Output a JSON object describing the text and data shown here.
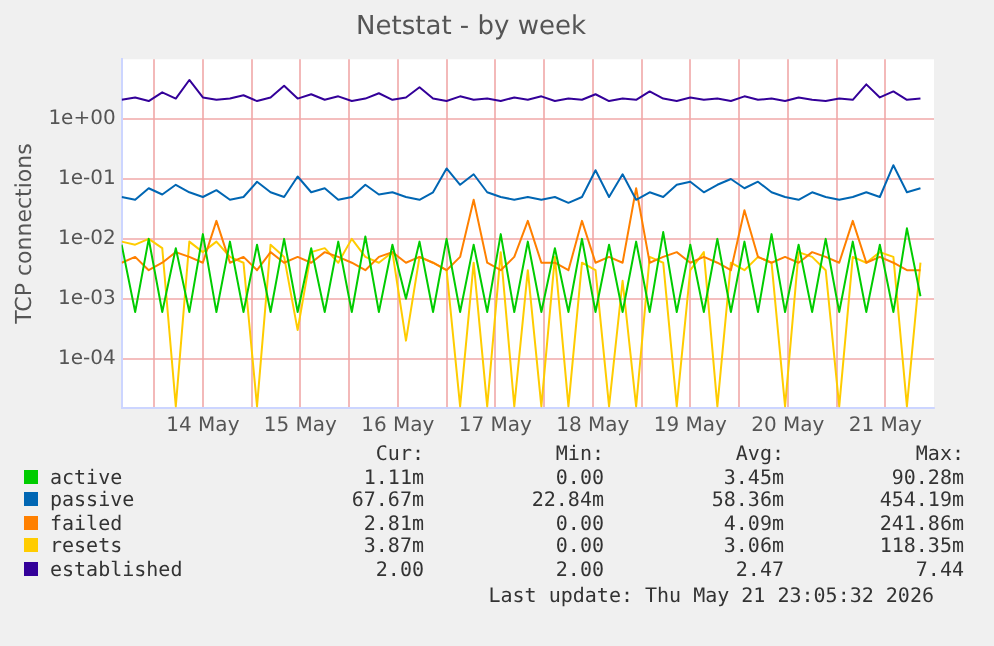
{
  "chart_data": {
    "type": "line",
    "title": "Netstat - by week",
    "ylabel": "TCP connections",
    "log": "y",
    "grid": true,
    "marker": "none",
    "line_style": "solid",
    "legend": "bottom",
    "ylim": [
      1.5e-05,
      10
    ],
    "yticks": [
      {
        "value": 0.0001,
        "label": "1e-04"
      },
      {
        "value": 0.001,
        "label": "1e-03"
      },
      {
        "value": 0.01,
        "label": "1e-02"
      },
      {
        "value": 0.1,
        "label": "1e-01"
      },
      {
        "value": 1,
        "label": "1e+00"
      }
    ],
    "xlim": [
      "2026-05-13T16:00",
      "2026-05-22T00:00"
    ],
    "xticks": [
      {
        "value": "2026-05-14T00:00",
        "label": null
      },
      {
        "value": "2026-05-14T12:00",
        "label": "14 May"
      },
      {
        "value": "2026-05-15T00:00",
        "label": null
      },
      {
        "value": "2026-05-15T12:00",
        "label": "15 May"
      },
      {
        "value": "2026-05-16T00:00",
        "label": null
      },
      {
        "value": "2026-05-16T12:00",
        "label": "16 May"
      },
      {
        "value": "2026-05-17T00:00",
        "label": null
      },
      {
        "value": "2026-05-17T12:00",
        "label": "17 May"
      },
      {
        "value": "2026-05-18T00:00",
        "label": null
      },
      {
        "value": "2026-05-18T12:00",
        "label": "18 May"
      },
      {
        "value": "2026-05-19T00:00",
        "label": null
      },
      {
        "value": "2026-05-19T12:00",
        "label": "19 May"
      },
      {
        "value": "2026-05-20T00:00",
        "label": null
      },
      {
        "value": "2026-05-20T12:00",
        "label": "20 May"
      },
      {
        "value": "2026-05-21T00:00",
        "label": null
      },
      {
        "value": "2026-05-21T12:00",
        "label": "21 May"
      }
    ],
    "x": [
      "2026-05-13T16:00",
      "2026-05-13T19:20",
      "2026-05-13T22:40",
      "2026-05-14T02:00",
      "2026-05-14T05:20",
      "2026-05-14T08:40",
      "2026-05-14T12:00",
      "2026-05-14T15:20",
      "2026-05-14T18:40",
      "2026-05-14T22:00",
      "2026-05-15T01:20",
      "2026-05-15T04:40",
      "2026-05-15T08:00",
      "2026-05-15T11:20",
      "2026-05-15T14:40",
      "2026-05-15T18:00",
      "2026-05-15T21:20",
      "2026-05-16T00:40",
      "2026-05-16T04:00",
      "2026-05-16T07:20",
      "2026-05-16T10:40",
      "2026-05-16T14:00",
      "2026-05-16T17:20",
      "2026-05-16T20:40",
      "2026-05-17T00:00",
      "2026-05-17T03:20",
      "2026-05-17T06:40",
      "2026-05-17T10:00",
      "2026-05-17T13:20",
      "2026-05-17T16:40",
      "2026-05-17T20:00",
      "2026-05-17T23:20",
      "2026-05-18T02:40",
      "2026-05-18T06:00",
      "2026-05-18T09:20",
      "2026-05-18T12:40",
      "2026-05-18T16:00",
      "2026-05-18T19:20",
      "2026-05-18T22:40",
      "2026-05-19T02:00",
      "2026-05-19T05:20",
      "2026-05-19T08:40",
      "2026-05-19T12:00",
      "2026-05-19T15:20",
      "2026-05-19T18:40",
      "2026-05-19T22:00",
      "2026-05-20T01:20",
      "2026-05-20T04:40",
      "2026-05-20T08:00",
      "2026-05-20T11:20",
      "2026-05-20T14:40",
      "2026-05-20T18:00",
      "2026-05-20T21:20",
      "2026-05-21T00:40",
      "2026-05-21T04:00",
      "2026-05-21T07:20",
      "2026-05-21T10:40",
      "2026-05-21T14:00",
      "2026-05-21T17:20",
      "2026-05-21T20:40"
    ],
    "series": [
      {
        "name": "active",
        "color": "#00cc00",
        "values": [
          0.008,
          0.0006,
          0.01,
          0.0006,
          0.007,
          0.0006,
          0.012,
          0.0006,
          0.009,
          0.0006,
          0.008,
          0.0006,
          0.01,
          0.0006,
          0.007,
          0.0006,
          0.009,
          0.0006,
          0.011,
          0.0006,
          0.008,
          0.001,
          0.009,
          0.0006,
          0.01,
          0.0006,
          0.008,
          0.0006,
          0.012,
          0.0006,
          0.009,
          0.0006,
          0.007,
          0.0006,
          0.01,
          0.0006,
          0.008,
          0.0006,
          0.009,
          0.0006,
          0.013,
          0.0006,
          0.008,
          0.0006,
          0.01,
          0.0006,
          0.009,
          0.0006,
          0.012,
          0.0006,
          0.008,
          0.0006,
          0.01,
          0.0006,
          0.009,
          0.0006,
          0.008,
          0.0006,
          0.015,
          0.0011
        ]
      },
      {
        "name": "passive",
        "color": "#0066b3",
        "values": [
          0.05,
          0.045,
          0.07,
          0.055,
          0.08,
          0.06,
          0.05,
          0.065,
          0.045,
          0.05,
          0.09,
          0.06,
          0.05,
          0.11,
          0.06,
          0.07,
          0.045,
          0.05,
          0.08,
          0.055,
          0.06,
          0.05,
          0.045,
          0.06,
          0.15,
          0.08,
          0.12,
          0.06,
          0.05,
          0.045,
          0.05,
          0.045,
          0.05,
          0.04,
          0.05,
          0.14,
          0.05,
          0.12,
          0.045,
          0.06,
          0.05,
          0.08,
          0.09,
          0.06,
          0.08,
          0.1,
          0.07,
          0.09,
          0.06,
          0.05,
          0.045,
          0.06,
          0.05,
          0.045,
          0.05,
          0.06,
          0.05,
          0.17,
          0.06,
          0.07
        ]
      },
      {
        "name": "failed",
        "color": "#ff8000",
        "values": [
          0.004,
          0.005,
          0.003,
          0.004,
          0.006,
          0.005,
          0.004,
          0.02,
          0.004,
          0.005,
          0.003,
          0.006,
          0.004,
          0.005,
          0.004,
          0.006,
          0.005,
          0.004,
          0.003,
          0.005,
          0.006,
          0.004,
          0.005,
          0.004,
          0.003,
          0.005,
          0.045,
          0.004,
          0.003,
          0.005,
          0.02,
          0.004,
          0.004,
          0.003,
          0.02,
          0.004,
          0.005,
          0.004,
          0.07,
          0.004,
          0.005,
          0.006,
          0.004,
          0.005,
          0.004,
          0.003,
          0.03,
          0.005,
          0.004,
          0.005,
          0.004,
          0.006,
          0.005,
          0.004,
          0.02,
          0.004,
          0.005,
          0.004,
          0.003,
          0.003
        ]
      },
      {
        "name": "resets",
        "color": "#ffcc00",
        "values": [
          0.009,
          0.008,
          0.01,
          0.007,
          1.6e-05,
          0.009,
          0.006,
          0.009,
          0.005,
          0.004,
          1.6e-05,
          0.008,
          0.005,
          0.0003,
          0.006,
          0.007,
          0.004,
          0.01,
          0.005,
          0.004,
          0.006,
          0.0002,
          0.005,
          0.004,
          0.003,
          1.6e-05,
          0.004,
          1.6e-05,
          0.006,
          1.6e-05,
          0.003,
          1.6e-05,
          0.005,
          1.6e-05,
          0.004,
          0.003,
          1.6e-05,
          0.002,
          1.6e-05,
          0.005,
          0.004,
          1.6e-05,
          0.003,
          0.006,
          1.6e-05,
          0.004,
          0.003,
          0.005,
          0.004,
          1.6e-05,
          0.006,
          0.005,
          0.003,
          1.6e-05,
          0.005,
          0.004,
          0.006,
          0.005,
          1.6e-05,
          0.004
        ]
      },
      {
        "name": "established",
        "color": "#330099",
        "values": [
          2.1,
          2.3,
          2.0,
          2.8,
          2.2,
          4.5,
          2.3,
          2.1,
          2.2,
          2.5,
          2.0,
          2.3,
          3.6,
          2.2,
          2.6,
          2.1,
          2.4,
          2.0,
          2.2,
          2.7,
          2.1,
          2.3,
          3.4,
          2.2,
          2.0,
          2.4,
          2.1,
          2.2,
          2.0,
          2.3,
          2.1,
          2.4,
          2.0,
          2.2,
          2.1,
          2.6,
          2.0,
          2.2,
          2.1,
          2.9,
          2.2,
          2.0,
          2.3,
          2.1,
          2.2,
          2.0,
          2.4,
          2.1,
          2.2,
          2.0,
          2.3,
          2.1,
          2.0,
          2.2,
          2.1,
          3.8,
          2.3,
          2.9,
          2.1,
          2.2
        ]
      }
    ],
    "annotations": [
      "Cur:",
      "Min:",
      "Avg:",
      "Max:",
      "1.11m",
      "0.00",
      "3.45m",
      "90.28m",
      "67.67m",
      "22.84m",
      "58.36m",
      "454.19m",
      "2.81m",
      "0.00",
      "4.09m",
      "241.86m",
      "3.87m",
      "0.00",
      "3.06m",
      "118.35m",
      "2.00",
      "2.00",
      "2.47",
      "7.44",
      "Last update: Thu May 21 23:05:32 2026"
    ]
  }
}
